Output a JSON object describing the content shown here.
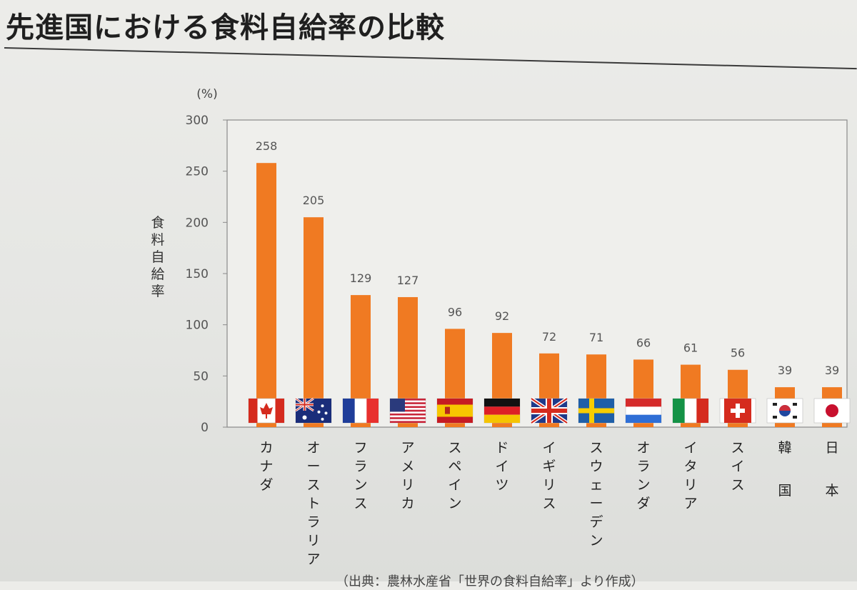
{
  "title": "先進国における食料自給率の比較",
  "source_note": "（出典：農林水産省「世界の食料自給率」より作成）",
  "chart_data": {
    "type": "bar",
    "title": "先進国における食料自給率の比較",
    "ylabel": "食料自給率",
    "unit_label": "(%)",
    "ylim": [
      0,
      300
    ],
    "yticks": [
      0,
      50,
      100,
      150,
      200,
      250,
      300
    ],
    "categories": [
      "カナダ",
      "オーストラリア",
      "フランス",
      "アメリカ",
      "スペイン",
      "ドイツ",
      "イギリス",
      "スウェーデン",
      "オランダ",
      "イタリア",
      "スイス",
      "韓国",
      "日本"
    ],
    "values": [
      258,
      205,
      129,
      127,
      96,
      92,
      72,
      71,
      66,
      61,
      56,
      39,
      39
    ],
    "data_labels": [
      "258",
      "205",
      "129",
      "127",
      "96",
      "92",
      "72",
      "71",
      "66",
      "61",
      "56",
      "39",
      "39"
    ],
    "flags": [
      "canada-flag",
      "australia-flag",
      "france-flag",
      "usa-flag",
      "spain-flag",
      "germany-flag",
      "uk-flag",
      "sweden-flag",
      "netherlands-flag",
      "italy-flag",
      "switzerland-flag",
      "korea-flag",
      "japan-flag"
    ],
    "bar_color": "#f07a22",
    "grid": false
  }
}
